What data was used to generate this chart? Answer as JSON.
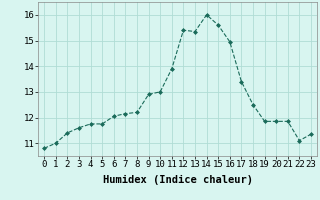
{
  "x": [
    0,
    1,
    2,
    3,
    4,
    5,
    6,
    7,
    8,
    9,
    10,
    11,
    12,
    13,
    14,
    15,
    16,
    17,
    18,
    19,
    20,
    21,
    22,
    23
  ],
  "y": [
    10.8,
    11.0,
    11.4,
    11.6,
    11.75,
    11.75,
    12.05,
    12.15,
    12.2,
    12.9,
    13.0,
    13.9,
    15.4,
    15.35,
    16.0,
    15.6,
    14.95,
    13.4,
    12.5,
    11.85,
    11.85,
    11.85,
    11.1,
    11.35
  ],
  "line_color": "#1a6b5a",
  "marker": "D",
  "marker_size": 2.0,
  "bg_color": "#d8f5f0",
  "grid_color": "#b0ddd5",
  "xlabel": "Humidex (Indice chaleur)",
  "xlabel_fontsize": 7.5,
  "tick_fontsize": 6.5,
  "xlim": [
    -0.5,
    23.5
  ],
  "ylim": [
    10.5,
    16.5
  ],
  "yticks": [
    11,
    12,
    13,
    14,
    15,
    16
  ],
  "xticks": [
    0,
    1,
    2,
    3,
    4,
    5,
    6,
    7,
    8,
    9,
    10,
    11,
    12,
    13,
    14,
    15,
    16,
    17,
    18,
    19,
    20,
    21,
    22,
    23
  ]
}
